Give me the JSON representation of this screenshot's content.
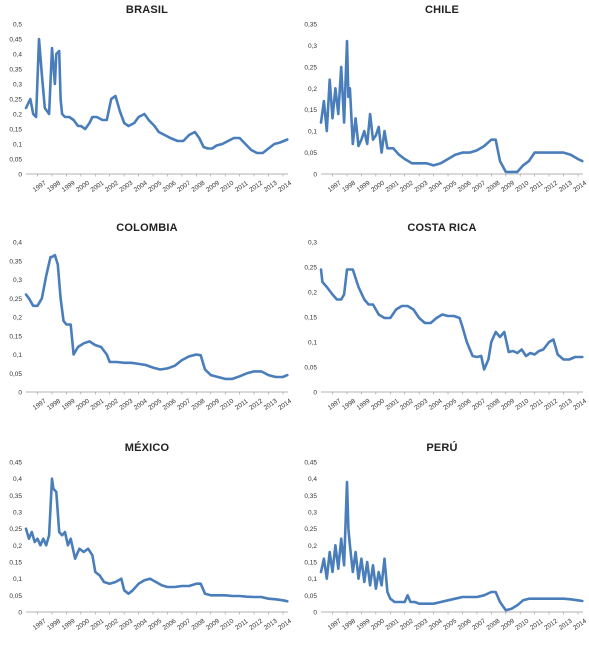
{
  "chart_data": [
    {
      "type": "line",
      "title": "BRASIL",
      "color": "#4a7ebb",
      "ylim": [
        0,
        0.5
      ],
      "yticks": [
        "0",
        "0,05",
        "0,1",
        "0,15",
        "0,2",
        "0,25",
        "0,3",
        "0,35",
        "0,4",
        "0,45",
        "0,5"
      ],
      "xticks": [
        "1997",
        "1998",
        "1999",
        "2000",
        "2001",
        "2002",
        "2003",
        "2004",
        "2005",
        "2006",
        "2007",
        "2008",
        "2009",
        "2010",
        "2011",
        "2012",
        "2013",
        "2014"
      ],
      "xlim": [
        1996.2,
        2014.35
      ],
      "series": [
        {
          "x": [
            1996.2,
            1996.5,
            1996.7,
            1996.9,
            1997.1,
            1997.3,
            1997.5,
            1997.8,
            1998.0,
            1998.2,
            1998.3,
            1998.5,
            1998.6,
            1998.7,
            1998.9,
            1999.2,
            1999.5,
            1999.8,
            2000.0,
            2000.3,
            2000.6,
            2000.8,
            2001.1,
            2001.5,
            2001.8,
            2002.1,
            2002.4,
            2002.7,
            2003.0,
            2003.3,
            2003.7,
            2004.0,
            2004.4,
            2004.7,
            2005.1,
            2005.4,
            2005.8,
            2006.2,
            2006.7,
            2007.1,
            2007.5,
            2007.9,
            2008.2,
            2008.5,
            2008.8,
            2009.1,
            2009.4,
            2009.8,
            2010.2,
            2010.6,
            2011.0,
            2011.4,
            2011.8,
            2012.2,
            2012.6,
            2013.0,
            2013.4,
            2013.8,
            2014.3
          ],
          "values": [
            0.22,
            0.25,
            0.2,
            0.19,
            0.45,
            0.33,
            0.22,
            0.2,
            0.42,
            0.3,
            0.4,
            0.41,
            0.25,
            0.2,
            0.19,
            0.19,
            0.18,
            0.16,
            0.16,
            0.15,
            0.17,
            0.19,
            0.19,
            0.18,
            0.18,
            0.25,
            0.26,
            0.21,
            0.17,
            0.16,
            0.17,
            0.19,
            0.2,
            0.18,
            0.16,
            0.14,
            0.13,
            0.12,
            0.11,
            0.11,
            0.13,
            0.14,
            0.12,
            0.09,
            0.085,
            0.085,
            0.095,
            0.1,
            0.11,
            0.12,
            0.12,
            0.1,
            0.08,
            0.07,
            0.07,
            0.085,
            0.1,
            0.105,
            0.115
          ]
        }
      ]
    },
    {
      "type": "line",
      "title": "CHILE",
      "color": "#4a7ebb",
      "ylim": [
        0,
        0.35
      ],
      "yticks": [
        "0",
        "0,05",
        "0,1",
        "0,15",
        "0,2",
        "0,25",
        "0,3",
        "0,35"
      ],
      "xticks": [
        "1997",
        "1998",
        "1999",
        "2000",
        "2001",
        "2002",
        "2003",
        "2004",
        "2005",
        "2006",
        "2007",
        "2008",
        "2009",
        "2010",
        "2011",
        "2012",
        "2013",
        "2014"
      ],
      "xlim": [
        1996.2,
        2014.35
      ],
      "series": [
        {
          "x": [
            1996.2,
            1996.4,
            1996.6,
            1996.8,
            1997.0,
            1997.2,
            1997.4,
            1997.6,
            1997.8,
            1998.0,
            1998.1,
            1998.2,
            1998.4,
            1998.6,
            1998.8,
            1999.0,
            1999.2,
            1999.4,
            1999.6,
            1999.8,
            2000.0,
            2000.2,
            2000.4,
            2000.6,
            2000.8,
            2001.2,
            2001.6,
            2002.0,
            2002.5,
            2003.0,
            2003.5,
            2004.0,
            2004.5,
            2005.0,
            2005.5,
            2006.0,
            2006.5,
            2007.0,
            2007.5,
            2008.0,
            2008.3,
            2008.6,
            2009.0,
            2009.4,
            2009.8,
            2010.2,
            2010.6,
            2011.0,
            2011.5,
            2012.0,
            2012.5,
            2013.0,
            2013.5,
            2014.0,
            2014.3
          ],
          "values": [
            0.12,
            0.17,
            0.1,
            0.22,
            0.13,
            0.2,
            0.14,
            0.25,
            0.12,
            0.31,
            0.18,
            0.2,
            0.07,
            0.13,
            0.065,
            0.08,
            0.1,
            0.07,
            0.14,
            0.08,
            0.09,
            0.11,
            0.05,
            0.1,
            0.06,
            0.06,
            0.045,
            0.035,
            0.025,
            0.025,
            0.025,
            0.02,
            0.025,
            0.035,
            0.045,
            0.05,
            0.05,
            0.055,
            0.065,
            0.08,
            0.08,
            0.03,
            0.005,
            0.005,
            0.005,
            0.02,
            0.03,
            0.05,
            0.05,
            0.05,
            0.05,
            0.05,
            0.045,
            0.035,
            0.03
          ]
        }
      ]
    },
    {
      "type": "line",
      "title": "COLOMBIA",
      "color": "#4a7ebb",
      "ylim": [
        0,
        0.4
      ],
      "yticks": [
        "0",
        "0,05",
        "0,1",
        "0,15",
        "0,2",
        "0,25",
        "0,3",
        "0,35",
        "0,4"
      ],
      "xticks": [
        "1997",
        "1998",
        "1999",
        "2000",
        "2001",
        "2002",
        "2003",
        "2004",
        "2005",
        "2006",
        "2007",
        "2008",
        "2009",
        "2010",
        "2011",
        "2012",
        "2013",
        "2014"
      ],
      "xlim": [
        1996.2,
        2014.35
      ],
      "series": [
        {
          "x": [
            1996.2,
            1996.4,
            1996.7,
            1997.0,
            1997.3,
            1997.6,
            1997.9,
            1998.0,
            1998.2,
            1998.4,
            1998.6,
            1998.8,
            1999.0,
            1999.3,
            1999.5,
            1999.8,
            2000.2,
            2000.6,
            2001.0,
            2001.4,
            2001.8,
            2002.0,
            2002.5,
            2003.0,
            2003.5,
            2004.0,
            2004.5,
            2005.0,
            2005.5,
            2006.0,
            2006.5,
            2007.0,
            2007.5,
            2008.0,
            2008.3,
            2008.6,
            2009.0,
            2009.5,
            2010.0,
            2010.5,
            2011.0,
            2011.5,
            2012.0,
            2012.5,
            2013.0,
            2013.5,
            2014.0,
            2014.3
          ],
          "values": [
            0.26,
            0.25,
            0.23,
            0.23,
            0.25,
            0.31,
            0.36,
            0.36,
            0.365,
            0.34,
            0.25,
            0.19,
            0.18,
            0.18,
            0.1,
            0.12,
            0.13,
            0.135,
            0.125,
            0.12,
            0.1,
            0.08,
            0.08,
            0.078,
            0.078,
            0.075,
            0.072,
            0.065,
            0.06,
            0.063,
            0.07,
            0.085,
            0.095,
            0.1,
            0.098,
            0.06,
            0.045,
            0.04,
            0.035,
            0.035,
            0.042,
            0.05,
            0.055,
            0.055,
            0.045,
            0.04,
            0.04,
            0.045
          ]
        }
      ]
    },
    {
      "type": "line",
      "title": "COSTA RICA",
      "color": "#4a7ebb",
      "ylim": [
        0,
        0.3
      ],
      "yticks": [
        "0",
        "0,05",
        "0,1",
        "0,15",
        "0,2",
        "0,25",
        "0,3"
      ],
      "xticks": [
        "1997",
        "1998",
        "1999",
        "2000",
        "2001",
        "2002",
        "2003",
        "2004",
        "2005",
        "2006",
        "2007",
        "2008",
        "2009",
        "2010",
        "2011",
        "2012",
        "2013",
        "2014"
      ],
      "xlim": [
        1996.2,
        2014.35
      ],
      "series": [
        {
          "x": [
            1996.2,
            1996.3,
            1996.6,
            1997.0,
            1997.3,
            1997.6,
            1997.8,
            1998.0,
            1998.4,
            1998.8,
            1999.2,
            1999.5,
            1999.8,
            2000.2,
            2000.6,
            2001.0,
            2001.4,
            2001.8,
            2002.2,
            2002.6,
            2003.0,
            2003.4,
            2003.8,
            2004.2,
            2004.6,
            2005.0,
            2005.4,
            2005.8,
            2006.0,
            2006.3,
            2006.7,
            2007.0,
            2007.3,
            2007.5,
            2007.8,
            2008.0,
            2008.3,
            2008.6,
            2008.9,
            2009.2,
            2009.5,
            2009.8,
            2010.1,
            2010.4,
            2010.7,
            2011.0,
            2011.3,
            2011.6,
            2012.0,
            2012.3,
            2012.6,
            2013.0,
            2013.4,
            2013.8,
            2014.3
          ],
          "values": [
            0.245,
            0.22,
            0.21,
            0.195,
            0.185,
            0.185,
            0.195,
            0.245,
            0.245,
            0.21,
            0.185,
            0.175,
            0.175,
            0.155,
            0.148,
            0.148,
            0.165,
            0.172,
            0.172,
            0.165,
            0.148,
            0.138,
            0.138,
            0.148,
            0.155,
            0.152,
            0.152,
            0.148,
            0.13,
            0.1,
            0.072,
            0.07,
            0.072,
            0.045,
            0.065,
            0.1,
            0.12,
            0.11,
            0.12,
            0.08,
            0.082,
            0.078,
            0.085,
            0.072,
            0.078,
            0.075,
            0.082,
            0.085,
            0.1,
            0.105,
            0.075,
            0.065,
            0.065,
            0.07,
            0.07
          ]
        }
      ]
    },
    {
      "type": "line",
      "title": "MÉXICO",
      "color": "#4a7ebb",
      "ylim": [
        0,
        0.45
      ],
      "yticks": [
        "0",
        "0,05",
        "0,1",
        "0,15",
        "0,2",
        "0,25",
        "0,3",
        "0,35",
        "0,4",
        "0,45"
      ],
      "xticks": [
        "1997",
        "1998",
        "1999",
        "2000",
        "2001",
        "2002",
        "2003",
        "2004",
        "2005",
        "2006",
        "2007",
        "2008",
        "2009",
        "2010",
        "2011",
        "2012",
        "2013",
        "2014"
      ],
      "xlim": [
        1996.2,
        2014.35
      ],
      "series": [
        {
          "x": [
            1996.2,
            1996.4,
            1996.6,
            1996.8,
            1997.0,
            1997.2,
            1997.4,
            1997.6,
            1997.8,
            1998.0,
            1998.1,
            1998.3,
            1998.5,
            1998.7,
            1998.9,
            1999.1,
            1999.3,
            1999.6,
            1999.9,
            2000.2,
            2000.5,
            2000.8,
            2001.0,
            2001.3,
            2001.6,
            2002.0,
            2002.4,
            2002.8,
            2003.0,
            2003.3,
            2003.6,
            2004.0,
            2004.4,
            2004.8,
            2005.2,
            2005.6,
            2006.0,
            2006.5,
            2007.0,
            2007.5,
            2008.0,
            2008.3,
            2008.6,
            2009.0,
            2009.5,
            2010.0,
            2010.5,
            2011.0,
            2011.5,
            2012.0,
            2012.5,
            2013.0,
            2013.5,
            2014.0,
            2014.3
          ],
          "values": [
            0.25,
            0.22,
            0.24,
            0.21,
            0.22,
            0.2,
            0.22,
            0.2,
            0.23,
            0.4,
            0.37,
            0.36,
            0.24,
            0.23,
            0.24,
            0.2,
            0.22,
            0.16,
            0.19,
            0.18,
            0.19,
            0.17,
            0.12,
            0.11,
            0.09,
            0.085,
            0.09,
            0.1,
            0.065,
            0.055,
            0.065,
            0.085,
            0.095,
            0.1,
            0.09,
            0.08,
            0.075,
            0.075,
            0.078,
            0.078,
            0.085,
            0.085,
            0.055,
            0.05,
            0.05,
            0.05,
            0.048,
            0.048,
            0.046,
            0.045,
            0.045,
            0.04,
            0.038,
            0.035,
            0.032
          ]
        }
      ]
    },
    {
      "type": "line",
      "title": "PERÚ",
      "color": "#4a7ebb",
      "ylim": [
        0,
        0.45
      ],
      "yticks": [
        "0",
        "0,05",
        "0,1",
        "0,15",
        "0,2",
        "0,25",
        "0,3",
        "0,35",
        "0,4",
        "0,45"
      ],
      "xticks": [
        "1997",
        "1998",
        "1999",
        "2000",
        "2001",
        "2002",
        "2003",
        "2004",
        "2005",
        "2006",
        "2007",
        "2008",
        "2009",
        "2010",
        "2011",
        "2012",
        "2013",
        "2014"
      ],
      "xlim": [
        1996.2,
        2014.35
      ],
      "series": [
        {
          "x": [
            1996.2,
            1996.4,
            1996.6,
            1996.8,
            1997.0,
            1997.2,
            1997.4,
            1997.6,
            1997.8,
            1998.0,
            1998.1,
            1998.2,
            1998.4,
            1998.6,
            1998.8,
            1999.0,
            1999.2,
            1999.4,
            1999.6,
            1999.8,
            2000.0,
            2000.2,
            2000.4,
            2000.6,
            2000.8,
            2001.0,
            2001.3,
            2001.6,
            2002.0,
            2002.2,
            2002.4,
            2002.7,
            2003.0,
            2003.5,
            2004.0,
            2004.5,
            2005.0,
            2005.5,
            2006.0,
            2006.5,
            2007.0,
            2007.5,
            2008.0,
            2008.3,
            2008.6,
            2009.0,
            2009.4,
            2009.8,
            2010.2,
            2010.6,
            2011.0,
            2011.5,
            2012.0,
            2012.5,
            2013.0,
            2013.5,
            2014.0,
            2014.3
          ],
          "values": [
            0.12,
            0.16,
            0.1,
            0.18,
            0.12,
            0.2,
            0.13,
            0.22,
            0.14,
            0.39,
            0.25,
            0.2,
            0.12,
            0.18,
            0.1,
            0.16,
            0.09,
            0.15,
            0.08,
            0.14,
            0.07,
            0.12,
            0.08,
            0.16,
            0.06,
            0.04,
            0.03,
            0.03,
            0.03,
            0.05,
            0.03,
            0.03,
            0.025,
            0.025,
            0.025,
            0.03,
            0.035,
            0.04,
            0.045,
            0.045,
            0.045,
            0.05,
            0.06,
            0.06,
            0.03,
            0.005,
            0.01,
            0.02,
            0.035,
            0.04,
            0.04,
            0.04,
            0.04,
            0.04,
            0.04,
            0.038,
            0.035,
            0.033
          ]
        }
      ]
    }
  ]
}
